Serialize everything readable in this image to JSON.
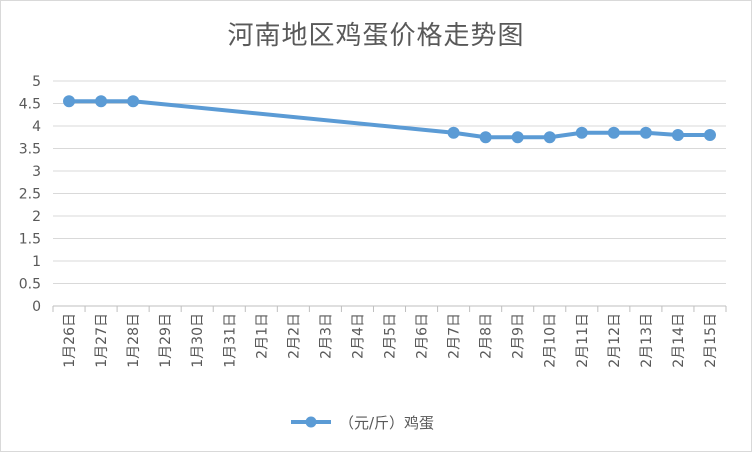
{
  "chart_data": {
    "type": "line",
    "title": "河南地区鸡蛋价格走势图",
    "categories": [
      "1月26日",
      "1月27日",
      "1月28日",
      "1月29日",
      "1月30日",
      "1月31日",
      "2月1日",
      "2月2日",
      "2月3日",
      "2月4日",
      "2月5日",
      "2月6日",
      "2月7日",
      "2月8日",
      "2月9日",
      "2月10日",
      "2月11日",
      "2月12日",
      "2月13日",
      "2月14日",
      "2月15日"
    ],
    "series": [
      {
        "name": "（元/斤）鸡蛋",
        "color": "#5b9bd5",
        "points": [
          {
            "x": "1月26日",
            "y": 4.55
          },
          {
            "x": "1月27日",
            "y": 4.55
          },
          {
            "x": "1月28日",
            "y": 4.55
          },
          {
            "x": "2月7日",
            "y": 3.85
          },
          {
            "x": "2月8日",
            "y": 3.75
          },
          {
            "x": "2月9日",
            "y": 3.75
          },
          {
            "x": "2月10日",
            "y": 3.75
          },
          {
            "x": "2月11日",
            "y": 3.85
          },
          {
            "x": "2月12日",
            "y": 3.85
          },
          {
            "x": "2月13日",
            "y": 3.85
          },
          {
            "x": "2月14日",
            "y": 3.8
          },
          {
            "x": "2月15日",
            "y": 3.8
          }
        ]
      }
    ],
    "yticks": [
      "0",
      "0.5",
      "1",
      "1.5",
      "2",
      "2.5",
      "3",
      "3.5",
      "4",
      "4.5",
      "5"
    ],
    "ylim": [
      0,
      5
    ],
    "grid": true,
    "legend_position": "bottom"
  }
}
